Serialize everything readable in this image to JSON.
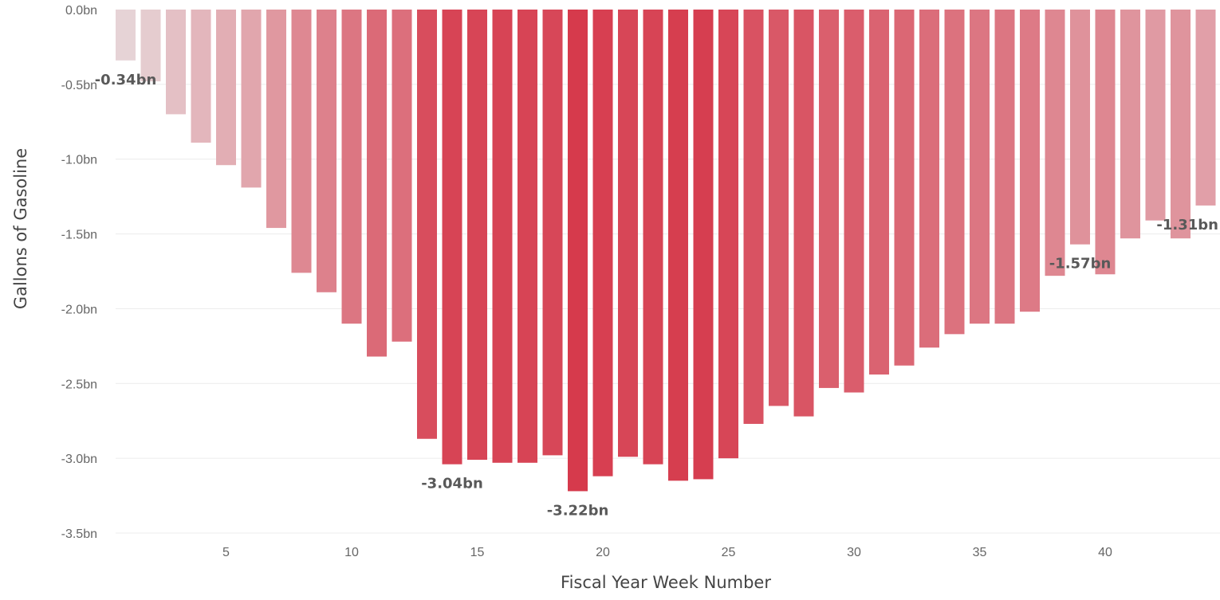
{
  "chart_data": {
    "type": "bar",
    "xlabel": "Fiscal Year Week Number",
    "ylabel": "Gallons of Gasoline",
    "ylim": [
      -3.5,
      0
    ],
    "y_ticks": [
      {
        "value": 0,
        "label": "0.0bn"
      },
      {
        "value": -0.5,
        "label": "-0.5bn"
      },
      {
        "value": -1.0,
        "label": "-1.0bn"
      },
      {
        "value": -1.5,
        "label": "-1.5bn"
      },
      {
        "value": -2.0,
        "label": "-2.0bn"
      },
      {
        "value": -2.5,
        "label": "-2.5bn"
      },
      {
        "value": -3.0,
        "label": "-3.0bn"
      },
      {
        "value": -3.5,
        "label": "-3.5bn"
      }
    ],
    "x_ticks": [
      {
        "value": 5,
        "label": "5"
      },
      {
        "value": 10,
        "label": "10"
      },
      {
        "value": 15,
        "label": "15"
      },
      {
        "value": 20,
        "label": "20"
      },
      {
        "value": 25,
        "label": "25"
      },
      {
        "value": 30,
        "label": "30"
      },
      {
        "value": 35,
        "label": "35"
      },
      {
        "value": 40,
        "label": "40"
      }
    ],
    "grid": true,
    "color_low": "#e6d3d6",
    "color_high": "#d63a4c",
    "x": [
      1,
      2,
      3,
      4,
      5,
      6,
      7,
      8,
      9,
      10,
      11,
      12,
      13,
      14,
      15,
      16,
      17,
      18,
      19,
      20,
      21,
      22,
      23,
      24,
      25,
      26,
      27,
      28,
      29,
      30,
      31,
      32,
      33,
      34,
      35,
      36,
      37,
      38,
      39,
      40,
      41,
      42,
      43,
      44
    ],
    "values": [
      -0.34,
      -0.48,
      -0.7,
      -0.89,
      -1.04,
      -1.19,
      -1.46,
      -1.76,
      -1.89,
      -2.1,
      -2.32,
      -2.22,
      -2.87,
      -3.04,
      -3.01,
      -3.03,
      -3.03,
      -2.98,
      -3.22,
      -3.12,
      -2.99,
      -3.04,
      -3.15,
      -3.14,
      -3.0,
      -2.77,
      -2.65,
      -2.72,
      -2.53,
      -2.56,
      -2.44,
      -2.38,
      -2.26,
      -2.17,
      -2.1,
      -2.1,
      -2.02,
      -1.78,
      -1.57,
      -1.77,
      -1.53,
      -1.41,
      -1.53,
      -1.31
    ],
    "data_labels": [
      {
        "x": 1,
        "value": -0.34,
        "label": "-0.34bn"
      },
      {
        "x": 14,
        "value": -3.04,
        "label": "-3.04bn"
      },
      {
        "x": 19,
        "value": -3.22,
        "label": "-3.22bn"
      },
      {
        "x": 39,
        "value": -1.57,
        "label": "-1.57bn"
      },
      {
        "x": 44,
        "value": -1.31,
        "label": "-1.31bn"
      }
    ]
  }
}
